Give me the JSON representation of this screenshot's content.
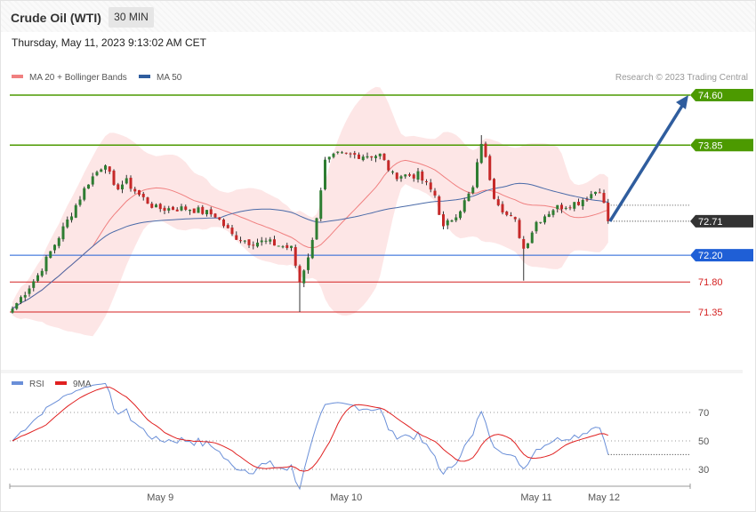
{
  "header": {
    "instrument": "Crude Oil (WTI)",
    "timeframe": "30 MIN"
  },
  "timestamp": "Thursday, May 11, 2023 9:13:02 AM CET",
  "legend": {
    "main": [
      {
        "label": "MA 20 + Bollinger Bands",
        "color": "#f08080"
      },
      {
        "label": "MA 50",
        "color": "#2f5d9e"
      }
    ],
    "rsi": [
      {
        "label": "RSI",
        "color": "#6a8fd8"
      },
      {
        "label": "9MA",
        "color": "#e02020"
      }
    ]
  },
  "credit": "Research © 2023 Trading Central",
  "chart_data": {
    "type": "candlestick",
    "ylim": [
      71.0,
      74.75
    ],
    "levels": [
      {
        "value": 74.6,
        "label": "74.60",
        "kind": "resistance",
        "color": "#4c9a00"
      },
      {
        "value": 73.85,
        "label": "73.85",
        "kind": "resistance",
        "color": "#4c9a00"
      },
      {
        "value": 72.71,
        "label": "72.71",
        "kind": "last",
        "color": "#333333"
      },
      {
        "value": 72.2,
        "label": "72.20",
        "kind": "pivot",
        "color": "#1f5fd6"
      },
      {
        "value": 71.8,
        "label": "71.80",
        "kind": "support",
        "color": "#d42020"
      },
      {
        "value": 71.35,
        "label": "71.35",
        "kind": "support",
        "color": "#d42020"
      }
    ],
    "projection": {
      "from": 72.71,
      "to": 74.6
    },
    "x_ticks": [
      "May 9",
      "May 10",
      "May 11",
      "May 12"
    ],
    "x_tick_bar_index": [
      35,
      79,
      124,
      140
    ],
    "close_anchors": [
      [
        0,
        71.4
      ],
      [
        6,
        71.9
      ],
      [
        12,
        72.6
      ],
      [
        18,
        73.3
      ],
      [
        22,
        73.6
      ],
      [
        24,
        73.2
      ],
      [
        27,
        73.3
      ],
      [
        30,
        73.1
      ],
      [
        34,
        72.9
      ],
      [
        42,
        72.9
      ],
      [
        48,
        72.8
      ],
      [
        52,
        72.5
      ],
      [
        56,
        72.4
      ],
      [
        60,
        72.4
      ],
      [
        66,
        72.3
      ],
      [
        68,
        71.8
      ],
      [
        71,
        72.4
      ],
      [
        74,
        73.6
      ],
      [
        77,
        73.7
      ],
      [
        83,
        73.7
      ],
      [
        87,
        73.7
      ],
      [
        90,
        73.4
      ],
      [
        96,
        73.4
      ],
      [
        100,
        73.1
      ],
      [
        102,
        72.6
      ],
      [
        106,
        72.9
      ],
      [
        109,
        73.2
      ],
      [
        111,
        73.9
      ],
      [
        114,
        73.1
      ],
      [
        117,
        72.8
      ],
      [
        119,
        72.7
      ],
      [
        121,
        72.3
      ],
      [
        124,
        72.7
      ],
      [
        128,
        72.9
      ],
      [
        134,
        73.0
      ],
      [
        139,
        73.2
      ],
      [
        141,
        72.71
      ]
    ],
    "rsi": {
      "levels": [
        70,
        50,
        30
      ],
      "ylim": [
        20,
        80
      ]
    }
  }
}
